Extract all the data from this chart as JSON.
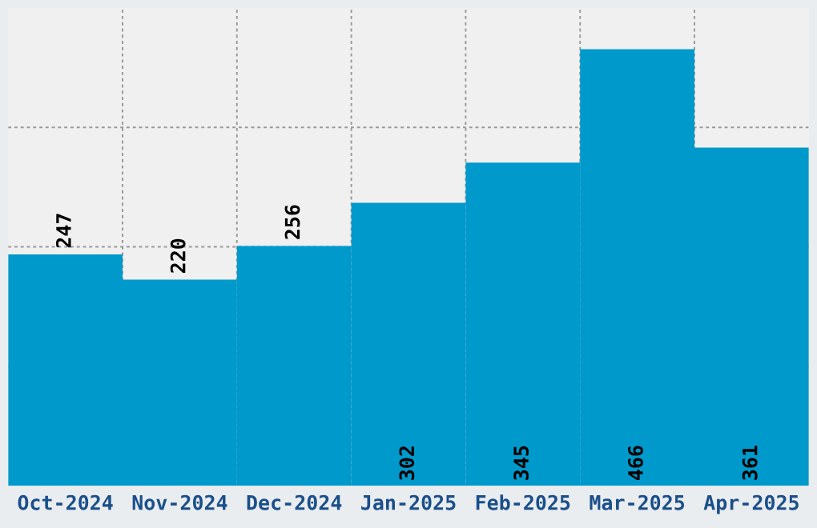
{
  "chart_data": {
    "type": "bar",
    "categories": [
      "Oct-2024",
      "Nov-2024",
      "Dec-2024",
      "Jan-2025",
      "Feb-2025",
      "Mar-2025",
      "Apr-2025"
    ],
    "values": [
      247,
      220,
      256,
      302,
      345,
      466,
      361
    ],
    "color": "#0099cc",
    "ylim": [
      0,
      510
    ],
    "yticks": [
      {
        "value": 127.5,
        "label": null
      },
      {
        "value": 255,
        "label": null
      },
      {
        "value": 382.5,
        "label": null
      }
    ],
    "tick_labels": "x",
    "grid": true,
    "data_labels": true
  }
}
